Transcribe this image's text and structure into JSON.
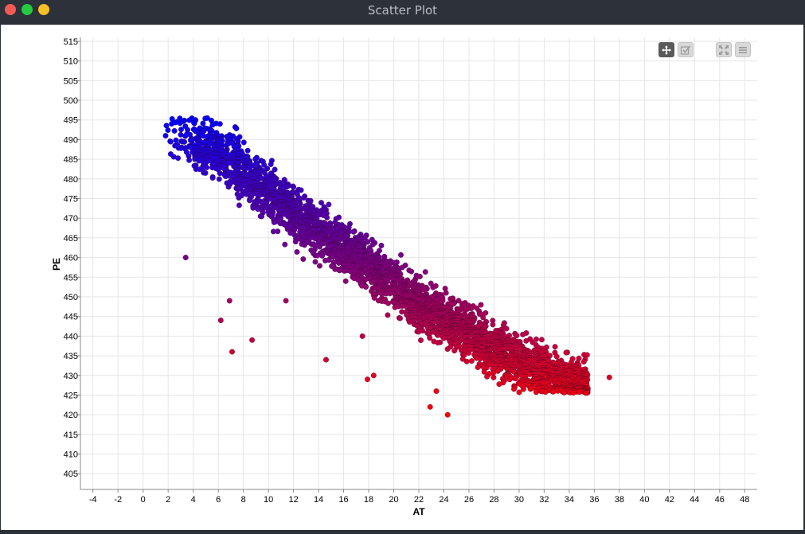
{
  "window": {
    "title": "Scatter Plot"
  },
  "toolbar": {
    "buttons": [
      {
        "icon": "pan-arrows-icon",
        "active": true
      },
      {
        "icon": "selection-check-icon",
        "active": false
      },
      {
        "icon": "fit-to-screen-icon",
        "active": false
      },
      {
        "icon": "menu-lines-icon",
        "active": false
      }
    ]
  },
  "colors": {
    "low_pe_point": "#ff0000",
    "high_pe_point": "#0000ff",
    "grid": "#e6e6e6"
  },
  "chart_data": {
    "type": "scatter",
    "xlabel": "AT",
    "ylabel": "PE",
    "xlim": [
      -5,
      49
    ],
    "ylim": [
      401,
      516
    ],
    "x_ticks": [
      "-4",
      "-2",
      "0",
      "2",
      "4",
      "6",
      "8",
      "10",
      "12",
      "14",
      "16",
      "18",
      "20",
      "22",
      "24",
      "26",
      "28",
      "30",
      "32",
      "34",
      "36",
      "38",
      "40",
      "42",
      "44",
      "46",
      "48"
    ],
    "y_ticks": [
      "405",
      "410",
      "415",
      "420",
      "425",
      "430",
      "435",
      "440",
      "445",
      "450",
      "455",
      "460",
      "465",
      "470",
      "475",
      "480",
      "485",
      "490",
      "495",
      "500",
      "505",
      "510",
      "515"
    ],
    "grid": true,
    "legend": "none",
    "color_by": "PE",
    "color_range": [
      420,
      496
    ],
    "trend": {
      "description": "dense negatively correlated band",
      "band_centerline": [
        [
          2,
          491
        ],
        [
          6,
          487
        ],
        [
          10,
          476
        ],
        [
          14,
          467
        ],
        [
          18,
          458
        ],
        [
          22,
          448
        ],
        [
          26,
          441
        ],
        [
          30,
          433
        ],
        [
          34,
          428
        ]
      ],
      "band_halfwidth": 6,
      "x_range": [
        1.8,
        35.5
      ],
      "y_floor": 425.5,
      "y_ceiling": 495.5
    },
    "outliers": [
      [
        3.4,
        460
      ],
      [
        6.2,
        444
      ],
      [
        6.9,
        449
      ],
      [
        7.1,
        436
      ],
      [
        8.7,
        439
      ],
      [
        11.4,
        449
      ],
      [
        14.6,
        434
      ],
      [
        17.9,
        429
      ],
      [
        18.4,
        430
      ],
      [
        17.5,
        440
      ],
      [
        22.9,
        422
      ],
      [
        23.4,
        426
      ],
      [
        24.3,
        420
      ],
      [
        37.2,
        429.5
      ],
      [
        1.8,
        491
      ]
    ]
  }
}
